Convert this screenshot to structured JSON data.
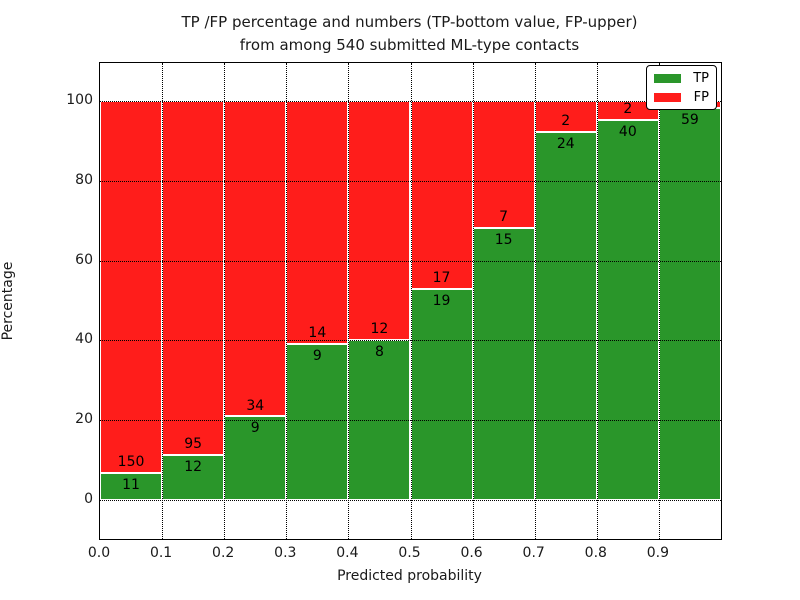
{
  "title": {
    "line1": "TP /FP percentage and numbers (TP-bottom value, FP-upper)",
    "line2": "from among 540 submitted ML-type contacts"
  },
  "axes": {
    "xlabel": "Predicted probability",
    "ylabel": "Percentage",
    "x_tick_labels": [
      "0.0",
      "0.1",
      "0.2",
      "0.3",
      "0.4",
      "0.5",
      "0.6",
      "0.7",
      "0.8",
      "0.9"
    ],
    "y_tick_labels": [
      "0",
      "20",
      "40",
      "60",
      "80",
      "100"
    ],
    "y_tick_values": [
      0,
      20,
      40,
      60,
      80,
      100
    ]
  },
  "legend": {
    "items": [
      {
        "label": "TP",
        "color": "#2a962a"
      },
      {
        "label": "FP",
        "color": "#ff1d1b"
      }
    ]
  },
  "colors": {
    "tp_green": "#2a962a",
    "fp_red": "#ff1d1b",
    "bar_edge": "#ffffff",
    "grid": "#000000"
  },
  "chart_data": {
    "type": "bar",
    "stacked": true,
    "normalized_to_percent": true,
    "title": "TP /FP percentage and numbers (TP-bottom value, FP-upper) from among 540 submitted ML-type contacts",
    "xlabel": "Predicted probability",
    "ylabel": "Percentage",
    "xlim": [
      0.0,
      1.0
    ],
    "ylim": [
      -10,
      110
    ],
    "bin_width": 0.1,
    "bin_starts": [
      0.0,
      0.1,
      0.2,
      0.3,
      0.4,
      0.5,
      0.6,
      0.7,
      0.8,
      0.9
    ],
    "series": [
      {
        "name": "TP",
        "position": "bottom",
        "color": "#2a962a",
        "counts": [
          11,
          12,
          9,
          9,
          8,
          19,
          15,
          24,
          40,
          59
        ]
      },
      {
        "name": "FP",
        "position": "top",
        "color": "#ff1d1b",
        "counts": [
          150,
          95,
          34,
          14,
          12,
          17,
          7,
          2,
          2,
          1
        ]
      }
    ],
    "tp_percent_heights": [
      6.8,
      11.2,
      20.9,
      39.1,
      40.0,
      52.8,
      68.2,
      92.3,
      95.2,
      98.3
    ],
    "total_contacts": 540,
    "grid": "dotted, drawn above bars",
    "legend_position": "upper right",
    "bar_value_labels": "TP count just below stack boundary, FP count just above stack boundary"
  }
}
